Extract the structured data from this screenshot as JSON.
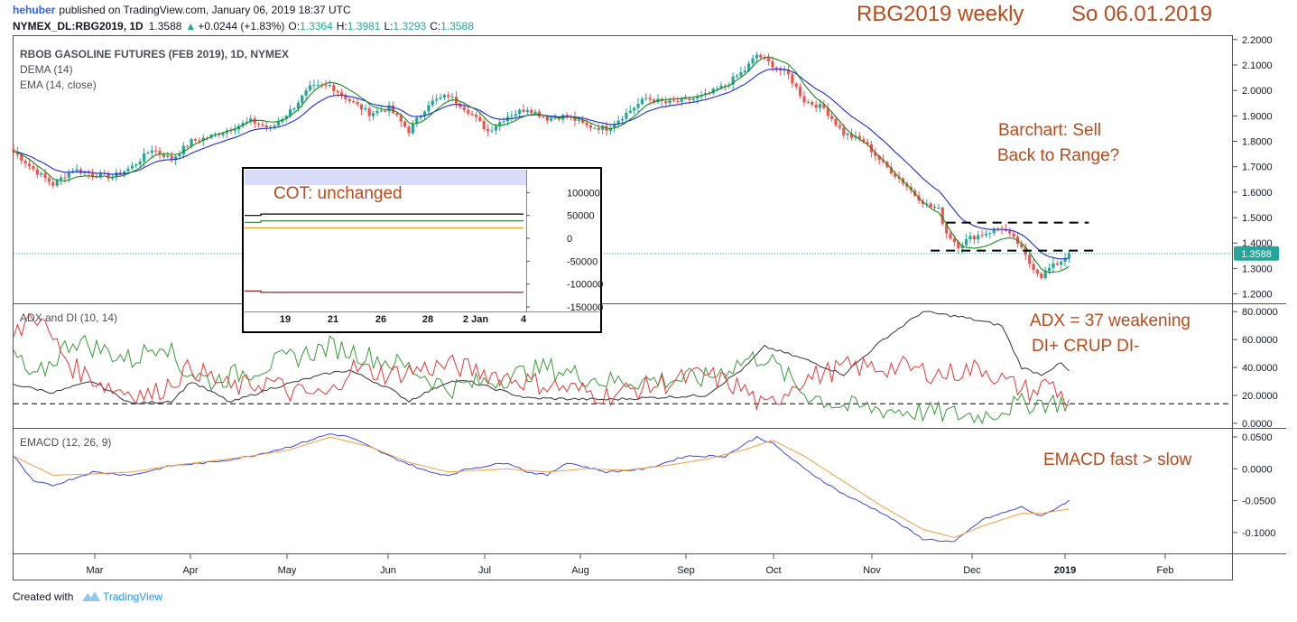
{
  "header": {
    "author": "hehuber",
    "published_text": "published on TradingView.com, January 06, 2019 18:37 UTC",
    "symbol_line": "NYMEX_DL:RBG2019, 1D",
    "last": "1.3588",
    "change": "+0.0244 (+1.83%)",
    "o_label": "O:",
    "o_value": "1.3364",
    "h_label": "H:",
    "h_value": "1.3981",
    "l_label": "L:",
    "l_value": "1.3293",
    "c_label": "C:",
    "c_value": "1.3588",
    "title_left": "RBG2019 weekly",
    "title_right": "So 06.01.2019"
  },
  "footer": {
    "created_with": "Created with",
    "brand": "TradingView"
  },
  "colors": {
    "bull": "#26a69a",
    "bear": "#ef5350",
    "dema": "#1b8a1b",
    "ema": "#1d2ad8",
    "adx": "#333333",
    "di_plus": "#3a9a3a",
    "di_minus": "#e23a3a",
    "macd": "#3b49e0",
    "signal": "#f0a040",
    "annotation": "#b84a1c",
    "last_badge": "#26a69a"
  },
  "chart_data": [
    {
      "id": "price",
      "type": "candlestick",
      "title": "RBOB GASOLINE FUTURES (FEB 2019), 1D, NYMEX",
      "indicator_labels": [
        "DEMA (14)",
        "EMA (14, close)"
      ],
      "x_axis_labels": [
        "Mar",
        "Apr",
        "May",
        "Jun",
        "Jul",
        "Aug",
        "Sep",
        "Oct",
        "Nov",
        "Dec",
        "2019",
        "Feb"
      ],
      "ylim": [
        1.17,
        2.21
      ],
      "y_ticks": [
        "2.2000",
        "2.1000",
        "2.0000",
        "1.9000",
        "1.8000",
        "1.7000",
        "1.6000",
        "1.5000",
        "1.4000",
        "1.3000",
        "1.2000"
      ],
      "last_value": "1.3588",
      "close_anchors": [
        [
          0,
          1.76
        ],
        [
          5,
          1.69
        ],
        [
          10,
          1.63
        ],
        [
          15,
          1.69
        ],
        [
          20,
          1.67
        ],
        [
          25,
          1.66
        ],
        [
          30,
          1.7
        ],
        [
          35,
          1.77
        ],
        [
          40,
          1.73
        ],
        [
          45,
          1.8
        ],
        [
          50,
          1.82
        ],
        [
          55,
          1.85
        ],
        [
          60,
          1.88
        ],
        [
          65,
          1.85
        ],
        [
          70,
          1.92
        ],
        [
          75,
          2.01
        ],
        [
          80,
          2.02
        ],
        [
          85,
          1.96
        ],
        [
          90,
          1.91
        ],
        [
          95,
          1.93
        ],
        [
          100,
          1.84
        ],
        [
          105,
          1.95
        ],
        [
          110,
          1.98
        ],
        [
          115,
          1.92
        ],
        [
          120,
          1.84
        ],
        [
          125,
          1.9
        ],
        [
          130,
          1.93
        ],
        [
          135,
          1.89
        ],
        [
          140,
          1.9
        ],
        [
          145,
          1.86
        ],
        [
          150,
          1.85
        ],
        [
          155,
          1.91
        ],
        [
          160,
          1.97
        ],
        [
          165,
          1.95
        ],
        [
          170,
          1.96
        ],
        [
          175,
          1.98
        ],
        [
          180,
          2.02
        ],
        [
          185,
          2.08
        ],
        [
          188,
          2.14
        ],
        [
          192,
          2.1
        ],
        [
          196,
          2.06
        ],
        [
          200,
          1.96
        ],
        [
          205,
          1.93
        ],
        [
          210,
          1.83
        ],
        [
          215,
          1.8
        ],
        [
          220,
          1.71
        ],
        [
          225,
          1.64
        ],
        [
          228,
          1.59
        ],
        [
          231,
          1.55
        ],
        [
          234,
          1.53
        ],
        [
          236,
          1.44
        ],
        [
          239,
          1.39
        ],
        [
          242,
          1.42
        ],
        [
          246,
          1.44
        ],
        [
          250,
          1.46
        ],
        [
          254,
          1.4
        ],
        [
          257,
          1.32
        ],
        [
          260,
          1.27
        ],
        [
          262,
          1.3
        ],
        [
          265,
          1.33
        ],
        [
          267,
          1.36
        ]
      ],
      "dashed_lines": [
        {
          "from_index": 236,
          "to_index": 272,
          "value": 1.48
        },
        {
          "from_index": 232,
          "to_index": 274,
          "value": 1.37
        }
      ]
    },
    {
      "id": "adx",
      "type": "line",
      "title": "ADX and DI (10, 14)",
      "ylim": [
        -2,
        84
      ],
      "y_ticks": [
        "80.0000",
        "60.0000",
        "40.0000",
        "20.0000",
        "0.0000"
      ],
      "reference_line": 14,
      "series": [
        {
          "key": "adx",
          "anchors": [
            [
              0,
              28
            ],
            [
              10,
              22
            ],
            [
              20,
              30
            ],
            [
              30,
              14
            ],
            [
              40,
              16
            ],
            [
              45,
              30
            ],
            [
              55,
              15
            ],
            [
              65,
              25
            ],
            [
              80,
              36
            ],
            [
              85,
              38
            ],
            [
              95,
              25
            ],
            [
              100,
              16
            ],
            [
              110,
              30
            ],
            [
              115,
              30
            ],
            [
              130,
              18
            ],
            [
              150,
              17
            ],
            [
              175,
              20
            ],
            [
              185,
              40
            ],
            [
              190,
              55
            ],
            [
              200,
              46
            ],
            [
              210,
              35
            ],
            [
              220,
              60
            ],
            [
              230,
              80
            ],
            [
              240,
              76
            ],
            [
              250,
              70
            ],
            [
              255,
              40
            ],
            [
              260,
              35
            ],
            [
              265,
              43
            ],
            [
              267,
              37
            ]
          ]
        },
        {
          "key": "di_plus",
          "anchors": [
            [
              0,
              50
            ],
            [
              5,
              30
            ],
            [
              15,
              60
            ],
            [
              20,
              55
            ],
            [
              30,
              45
            ],
            [
              38,
              60
            ],
            [
              42,
              40
            ],
            [
              50,
              30
            ],
            [
              60,
              38
            ],
            [
              80,
              55
            ],
            [
              85,
              52
            ],
            [
              100,
              40
            ],
            [
              110,
              25
            ],
            [
              120,
              30
            ],
            [
              135,
              40
            ],
            [
              150,
              30
            ],
            [
              175,
              32
            ],
            [
              185,
              45
            ],
            [
              190,
              48
            ],
            [
              200,
              22
            ],
            [
              210,
              12
            ],
            [
              230,
              8
            ],
            [
              245,
              5
            ],
            [
              252,
              12
            ],
            [
              258,
              15
            ],
            [
              267,
              15
            ]
          ]
        },
        {
          "key": "di_minus",
          "anchors": [
            [
              0,
              60
            ],
            [
              5,
              80
            ],
            [
              15,
              40
            ],
            [
              25,
              25
            ],
            [
              35,
              20
            ],
            [
              45,
              40
            ],
            [
              55,
              25
            ],
            [
              65,
              30
            ],
            [
              70,
              22
            ],
            [
              80,
              20
            ],
            [
              85,
              40
            ],
            [
              95,
              35
            ],
            [
              110,
              42
            ],
            [
              130,
              30
            ],
            [
              150,
              20
            ],
            [
              175,
              35
            ],
            [
              185,
              24
            ],
            [
              190,
              10
            ],
            [
              198,
              30
            ],
            [
              210,
              40
            ],
            [
              225,
              40
            ],
            [
              235,
              35
            ],
            [
              245,
              40
            ],
            [
              252,
              28
            ],
            [
              258,
              22
            ],
            [
              262,
              30
            ],
            [
              267,
              14
            ]
          ]
        }
      ]
    },
    {
      "id": "emacd",
      "type": "line",
      "title": "EMACD (12, 26, 9)",
      "ylim": [
        -0.13,
        0.06
      ],
      "y_ticks": [
        "0.0500",
        "0.0000",
        "-0.0500",
        "-0.1000"
      ],
      "series": [
        {
          "key": "macd",
          "anchors": [
            [
              0,
              0.02
            ],
            [
              5,
              -0.02
            ],
            [
              10,
              -0.026
            ],
            [
              20,
              -0.005
            ],
            [
              30,
              -0.01
            ],
            [
              40,
              0.005
            ],
            [
              50,
              0.01
            ],
            [
              60,
              0.02
            ],
            [
              70,
              0.035
            ],
            [
              80,
              0.055
            ],
            [
              85,
              0.05
            ],
            [
              95,
              0.02
            ],
            [
              105,
              -0.005
            ],
            [
              110,
              -0.01
            ],
            [
              115,
              0.0
            ],
            [
              125,
              0.01
            ],
            [
              130,
              -0.005
            ],
            [
              135,
              -0.01
            ],
            [
              140,
              0.01
            ],
            [
              150,
              -0.005
            ],
            [
              160,
              0.0
            ],
            [
              170,
              0.02
            ],
            [
              180,
              0.02
            ],
            [
              188,
              0.05
            ],
            [
              192,
              0.04
            ],
            [
              200,
              0.0
            ],
            [
              210,
              -0.04
            ],
            [
              220,
              -0.07
            ],
            [
              230,
              -0.11
            ],
            [
              238,
              -0.115
            ],
            [
              245,
              -0.08
            ],
            [
              255,
              -0.06
            ],
            [
              260,
              -0.075
            ],
            [
              267,
              -0.05
            ]
          ]
        },
        {
          "key": "signal",
          "anchors": [
            [
              0,
              0.02
            ],
            [
              10,
              -0.01
            ],
            [
              20,
              -0.008
            ],
            [
              30,
              -0.005
            ],
            [
              40,
              0.005
            ],
            [
              50,
              0.012
            ],
            [
              60,
              0.02
            ],
            [
              70,
              0.03
            ],
            [
              80,
              0.05
            ],
            [
              90,
              0.035
            ],
            [
              100,
              0.01
            ],
            [
              110,
              -0.005
            ],
            [
              125,
              0.0
            ],
            [
              135,
              -0.005
            ],
            [
              145,
              0.0
            ],
            [
              155,
              -0.002
            ],
            [
              165,
              0.005
            ],
            [
              175,
              0.015
            ],
            [
              185,
              0.03
            ],
            [
              192,
              0.045
            ],
            [
              200,
              0.02
            ],
            [
              210,
              -0.02
            ],
            [
              220,
              -0.06
            ],
            [
              230,
              -0.095
            ],
            [
              238,
              -0.108
            ],
            [
              245,
              -0.09
            ],
            [
              255,
              -0.07
            ],
            [
              260,
              -0.07
            ],
            [
              267,
              -0.063
            ]
          ]
        }
      ]
    },
    {
      "id": "cot",
      "type": "line",
      "title": "COT: unchanged",
      "x_axis_labels": [
        "19",
        "21",
        "26",
        "28",
        "2 Jan",
        "4"
      ],
      "ylim": [
        -150000,
        150000
      ],
      "y_ticks": [
        "100000",
        "50000",
        "0",
        "-50000",
        "-100000",
        "-150000"
      ],
      "series": [
        {
          "key": "black",
          "value": 53000,
          "step_from": 50000,
          "color": "#000000"
        },
        {
          "key": "green",
          "value": 38000,
          "step_from": 35000,
          "color": "#2a7a2a"
        },
        {
          "key": "orange",
          "value": 23000,
          "step_from": 23000,
          "color": "#e09a00"
        },
        {
          "key": "darkred",
          "value": -118000,
          "step_from": -115000,
          "color": "#8b0a0a"
        }
      ]
    }
  ],
  "annotations": {
    "barchart": "Barchart: Sell",
    "back_to_range": "Back to Range?",
    "adx_line": "ADX = 37 weakening",
    "di_line": "DI+ CRUP DI-",
    "emacd_line": "EMACD fast > slow"
  }
}
